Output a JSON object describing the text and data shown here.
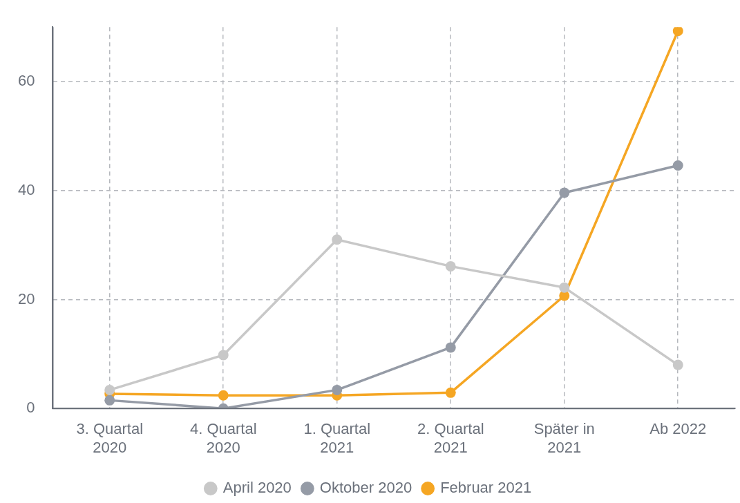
{
  "chart_data": {
    "type": "line",
    "categories": [
      "3. Quartal\n2020",
      "4. Quartal\n2020",
      "1. Quartal\n2021",
      "2. Quartal\n2021",
      "Später in\n2021",
      "Ab 2022"
    ],
    "series": [
      {
        "name": "April 2020",
        "color": "#c8c8c8",
        "values": [
          3.4,
          9.8,
          31.0,
          26.1,
          22.2,
          8.0
        ]
      },
      {
        "name": "Oktober 2020",
        "color": "#959ba6",
        "values": [
          1.5,
          0,
          3.4,
          11.2,
          39.6,
          44.6
        ]
      },
      {
        "name": "Februar 2021",
        "color": "#f5a623",
        "values": [
          2.7,
          2.4,
          2.4,
          2.9,
          20.7,
          69.3
        ]
      }
    ],
    "ylim": [
      0,
      70
    ],
    "yticks": [
      0,
      20,
      40,
      60
    ],
    "grid": true,
    "legend": "bottom",
    "marker": "circle",
    "line_style": "solid"
  }
}
